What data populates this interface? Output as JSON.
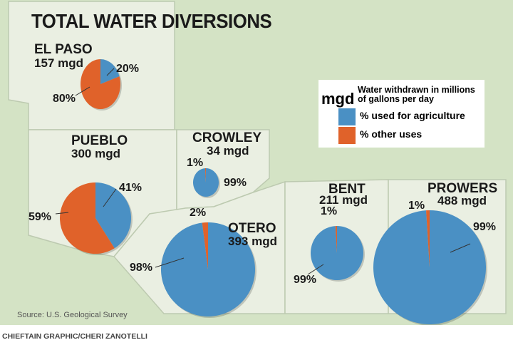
{
  "chart_data": {
    "type": "pie",
    "title": "TOTAL WATER DIVERSIONS",
    "unit": "mgd",
    "unit_description": "Water withdrawn in millions of gallons per day",
    "legend": [
      {
        "name": "% used for agriculture",
        "color": "#4a90c4"
      },
      {
        "name": "% other uses",
        "color": "#e0622a"
      }
    ],
    "pies": [
      {
        "county": "EL PASO",
        "mgd_label": "157 mgd",
        "mgd": 157,
        "agriculture": 20,
        "other": 80,
        "agriculture_label": "20%",
        "other_label": "80%"
      },
      {
        "county": "PUEBLO",
        "mgd_label": "300 mgd",
        "mgd": 300,
        "agriculture": 41,
        "other": 59,
        "agriculture_label": "41%",
        "other_label": "59%"
      },
      {
        "county": "CROWLEY",
        "mgd_label": "34 mgd",
        "mgd": 34,
        "agriculture": 99,
        "other": 1,
        "agriculture_label": "99%",
        "other_label": "1%"
      },
      {
        "county": "OTERO",
        "mgd_label": "393 mgd",
        "mgd": 393,
        "agriculture": 98,
        "other": 2,
        "agriculture_label": "98%",
        "other_label": "2%"
      },
      {
        "county": "BENT",
        "mgd_label": "211 mgd",
        "mgd": 211,
        "agriculture": 99,
        "other": 1,
        "agriculture_label": "99%",
        "other_label": "1%"
      },
      {
        "county": "PROWERS",
        "mgd_label": "488 mgd",
        "mgd": 488,
        "agriculture": 99,
        "other": 1,
        "agriculture_label": "99%",
        "other_label": "1%"
      }
    ],
    "source": "Source: U.S. Geological Survey"
  },
  "credit": "CHIEFTAIN GRAPHIC/CHERI ZANOTELLI",
  "colors": {
    "agriculture": "#4a90c4",
    "other": "#e0622a",
    "background": "#dfe9d3",
    "county_fill": "#eef2e8"
  }
}
